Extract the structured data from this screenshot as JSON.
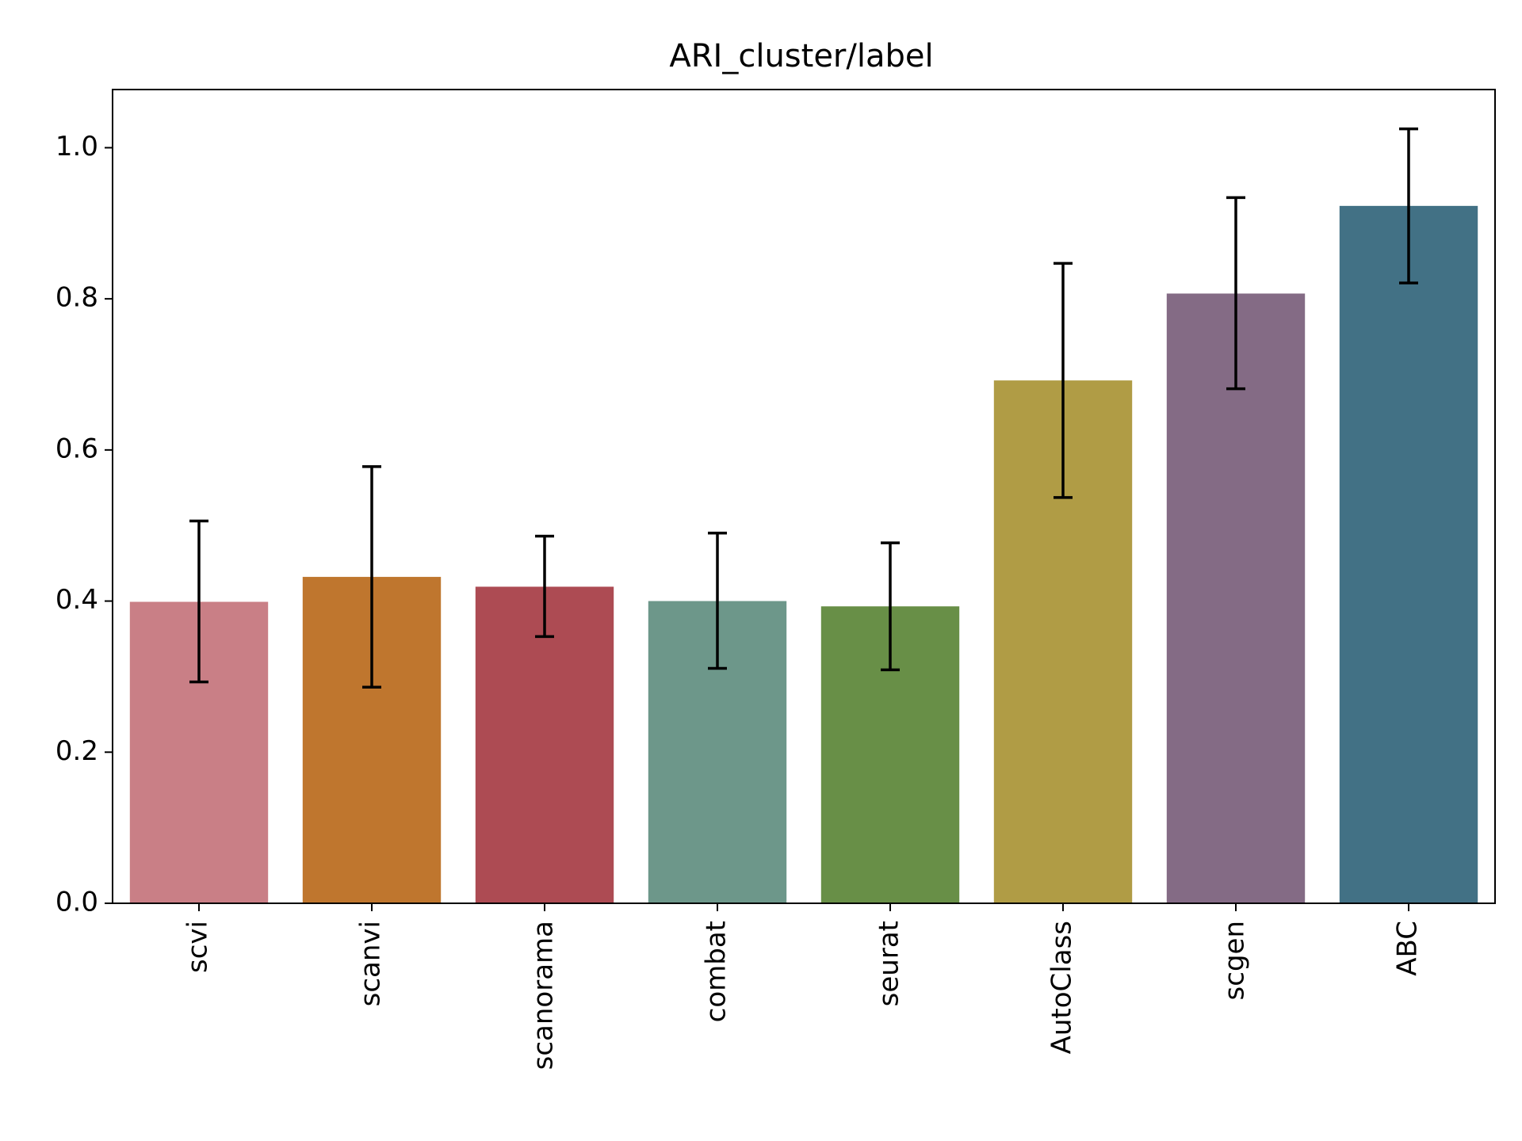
{
  "chart_data": {
    "type": "bar",
    "title": "ARI_cluster/label",
    "xlabel": "",
    "ylabel": "",
    "ylim": [
      0,
      1.077
    ],
    "yticks": [
      0.0,
      0.2,
      0.4,
      0.6,
      0.8,
      1.0
    ],
    "ytick_labels": [
      "0.0",
      "0.2",
      "0.4",
      "0.6",
      "0.8",
      "1.0"
    ],
    "grid": false,
    "categories": [
      "scvi",
      "scanvi",
      "scanorama",
      "combat",
      "seurat",
      "AutoClass",
      "scgen",
      "ABC"
    ],
    "values": [
      0.399,
      0.432,
      0.419,
      0.4,
      0.393,
      0.692,
      0.807,
      0.923
    ],
    "error_low": [
      0.293,
      0.286,
      0.353,
      0.311,
      0.309,
      0.537,
      0.681,
      0.821
    ],
    "error_high": [
      0.506,
      0.578,
      0.486,
      0.49,
      0.477,
      0.847,
      0.934,
      1.025
    ],
    "colors": [
      "#c97f86",
      "#bf762e",
      "#ad4b53",
      "#6d978a",
      "#688f47",
      "#b09c45",
      "#846b85",
      "#427185"
    ]
  }
}
